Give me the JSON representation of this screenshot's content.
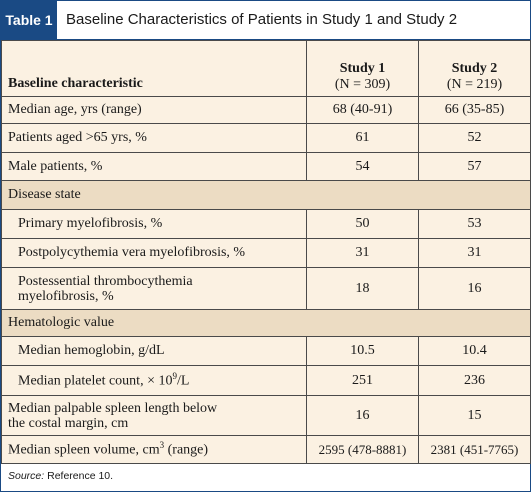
{
  "table_tag": "Table 1",
  "title": "Baseline Characteristics of Patients in Study 1 and Study 2",
  "header": {
    "label": "Baseline characteristic",
    "col1_name": "Study 1",
    "col1_n": "(N = 309)",
    "col2_name": "Study 2",
    "col2_n": "(N = 219)"
  },
  "rows": {
    "median_age": {
      "label": "Median age, yrs (range)",
      "s1": "68 (40-91)",
      "s2": "66 (35-85)"
    },
    "aged_65": {
      "label": "Patients aged >65 yrs, %",
      "s1": "61",
      "s2": "52"
    },
    "male": {
      "label": "Male patients, %",
      "s1": "54",
      "s2": "57"
    },
    "disease_state": {
      "label": "Disease state"
    },
    "primary_mf": {
      "label": "Primary myelofibrosis, %",
      "s1": "50",
      "s2": "53"
    },
    "ppv_mf": {
      "label": "Postpolycythemia vera myelofibrosis, %",
      "s1": "31",
      "s2": "31"
    },
    "pet_mf": {
      "label_line1": "Postessential thrombocythemia",
      "label_line2": "myelofibrosis, %",
      "s1": "18",
      "s2": "16"
    },
    "hematologic": {
      "label": "Hematologic value"
    },
    "hemoglobin": {
      "label": "Median hemoglobin, g/dL",
      "s1": "10.5",
      "s2": "10.4"
    },
    "platelet": {
      "label": "Median platelet count, × 10",
      "label_sup": "9",
      "label_after": "/L",
      "s1": "251",
      "s2": "236"
    },
    "spleen_length": {
      "label_line1": "Median palpable spleen length below",
      "label_line2": "the costal margin, cm",
      "s1": "16",
      "s2": "15"
    },
    "spleen_volume": {
      "label": "Median spleen volume, cm",
      "label_sup": "3",
      "label_after": " (range)",
      "s1": "2595 (478-8881)",
      "s2": "2381 (451-7765)"
    }
  },
  "footer": {
    "source_label": "Source:",
    "source_text": " Reference 10."
  },
  "colors": {
    "accent": "#1a4a84",
    "background": "#fbf1e2",
    "section_band": "#ecdcc3"
  }
}
